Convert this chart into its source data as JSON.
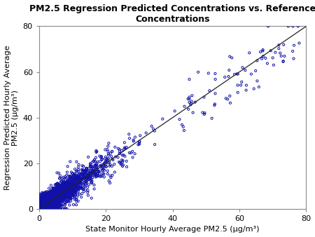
{
  "title": "PM2.5 Regression Predicted Concentrations vs. Reference\nConcentrations",
  "xlabel": "State Monitor Hourly Average PM2.5 (μg/m³)",
  "ylabel": "Regression Predicted Hourly Average\nPM2.5 (μg/m³)",
  "xlim": [
    0,
    80
  ],
  "ylim": [
    0,
    80
  ],
  "xticks": [
    0,
    20,
    40,
    60,
    80
  ],
  "yticks": [
    0,
    20,
    40,
    60,
    80
  ],
  "marker_color": "#1111AA",
  "marker_size": 5,
  "marker_linewidth": 0.7,
  "line_color": "#222222",
  "background_color": "#ffffff",
  "title_fontsize": 9,
  "axis_label_fontsize": 8,
  "tick_fontsize": 8,
  "n_dense": 2500,
  "n_mid": 400,
  "n_high": 80,
  "seed": 77
}
